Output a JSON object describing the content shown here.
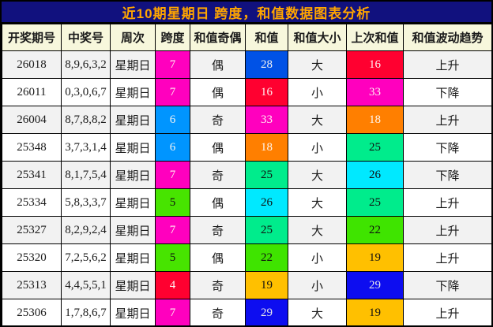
{
  "title": "近10期星期日 跨度，和值数据图表分析",
  "colors": {
    "title_bg": "#11117E",
    "title_fg": "#FFA500",
    "header_bg": "#F7F7DC",
    "row_alt_bg": "#F2F2F2",
    "row_bg": "#FFFFFF",
    "border": "#000000"
  },
  "value_colors": {
    "span": {
      "4": {
        "bg": "#FF0030",
        "fg": "#FFF2F2"
      },
      "5": {
        "bg": "#47E400",
        "fg": "#111111"
      },
      "6": {
        "bg": "#0095FF",
        "fg": "#F2F2F2"
      },
      "7": {
        "bg": "#FF00BE",
        "fg": "#FFF2F2"
      }
    },
    "sum": {
      "16": {
        "bg": "#FF0030",
        "fg": "#FFF2F2"
      },
      "18": {
        "bg": "#FF7F00",
        "fg": "#FFF6EE"
      },
      "19": {
        "bg": "#FFC000",
        "fg": "#111111"
      },
      "22": {
        "bg": "#3FE400",
        "fg": "#111111"
      },
      "25": {
        "bg": "#00EC8C",
        "fg": "#111111"
      },
      "26": {
        "bg": "#00E9FF",
        "fg": "#111111"
      },
      "28": {
        "bg": "#0052E6",
        "fg": "#F2F2F2"
      },
      "29": {
        "bg": "#0D0DF0",
        "fg": "#E8E8E8"
      },
      "33": {
        "bg": "#FF00BE",
        "fg": "#FFF2F2"
      }
    }
  },
  "chart_data": {
    "type": "table",
    "title": "近10期星期日 跨度，和值数据图表分析",
    "columns": [
      "开奖期号",
      "中奖号",
      "周次",
      "跨度",
      "和值奇偶",
      "和值",
      "和值大小",
      "上次和值",
      "和值波动趋势"
    ],
    "rows": [
      [
        "26018",
        "8,9,6,3,2",
        "星期日",
        "7",
        "偶",
        "28",
        "大",
        "16",
        "上升"
      ],
      [
        "26011",
        "0,3,0,6,7",
        "星期日",
        "7",
        "偶",
        "16",
        "小",
        "33",
        "下降"
      ],
      [
        "26004",
        "8,7,8,8,2",
        "星期日",
        "6",
        "奇",
        "33",
        "大",
        "18",
        "上升"
      ],
      [
        "25348",
        "3,7,3,1,4",
        "星期日",
        "6",
        "偶",
        "18",
        "小",
        "25",
        "下降"
      ],
      [
        "25341",
        "8,1,7,5,4",
        "星期日",
        "7",
        "奇",
        "25",
        "大",
        "26",
        "下降"
      ],
      [
        "25334",
        "5,8,3,3,7",
        "星期日",
        "5",
        "偶",
        "26",
        "大",
        "25",
        "上升"
      ],
      [
        "25327",
        "8,2,9,2,4",
        "星期日",
        "7",
        "奇",
        "25",
        "大",
        "22",
        "上升"
      ],
      [
        "25320",
        "7,2,5,6,2",
        "星期日",
        "5",
        "偶",
        "22",
        "小",
        "19",
        "上升"
      ],
      [
        "25313",
        "4,4,5,5,1",
        "星期日",
        "4",
        "奇",
        "19",
        "小",
        "29",
        "下降"
      ],
      [
        "25306",
        "1,7,8,6,7",
        "星期日",
        "7",
        "奇",
        "29",
        "大",
        "19",
        "上升"
      ]
    ]
  }
}
